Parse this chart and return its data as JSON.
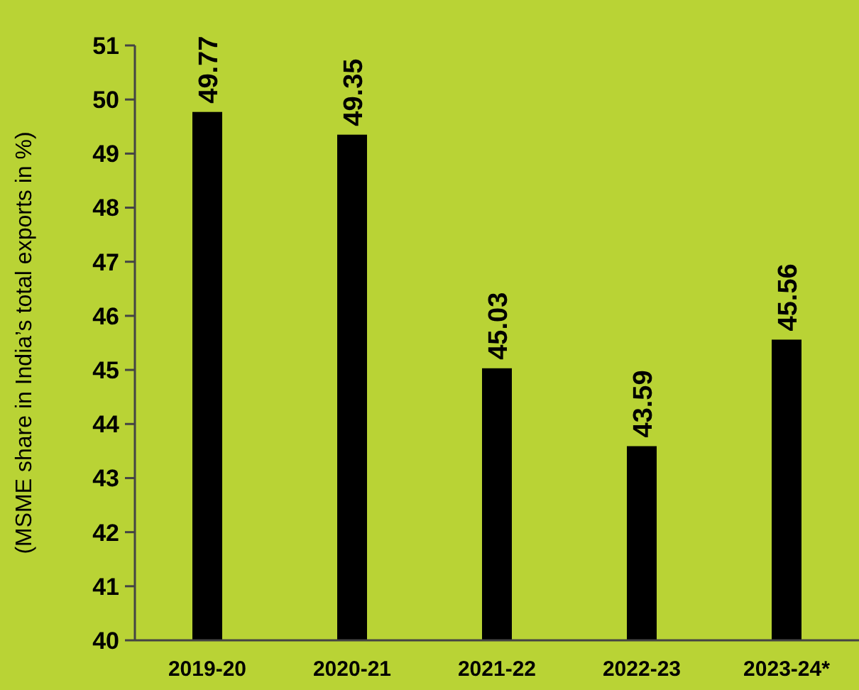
{
  "chart_data": {
    "type": "bar",
    "ylabel": "(MSME share in India’s total exports in %)",
    "categories": [
      "2019-20",
      "2020-21",
      "2021-22",
      "2022-23",
      "2023-24*"
    ],
    "values": [
      49.77,
      49.35,
      45.03,
      43.59,
      45.56
    ],
    "color": "#000000",
    "ylim": [
      40,
      51
    ],
    "yticks": [
      40,
      41,
      42,
      43,
      44,
      45,
      46,
      47,
      48,
      49,
      50,
      51
    ],
    "data_labels": true,
    "grid": false
  }
}
